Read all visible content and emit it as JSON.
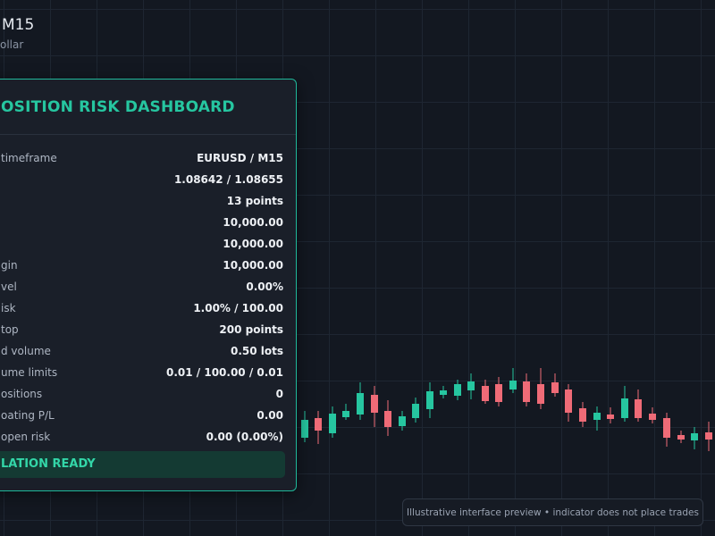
{
  "header": {
    "symbol": "M15",
    "description": "ollar"
  },
  "panel": {
    "title": "OSITION RISK DASHBOARD",
    "rows": [
      {
        "label": "timeframe",
        "value": "EURUSD / M15"
      },
      {
        "value": "1.08642 / 1.08655"
      },
      {
        "value": "13 points"
      },
      {
        "value": "10,000.00"
      },
      {
        "value": "10,000.00"
      },
      {
        "label": "gin",
        "value": "10,000.00"
      },
      {
        "label": "vel",
        "value": "0.00%"
      },
      {
        "label": "isk",
        "value": "1.00% / 100.00"
      },
      {
        "label": "top",
        "value": "200 points"
      },
      {
        "label": "d volume",
        "value": "0.50 lots"
      },
      {
        "label": "ume limits",
        "value": "0.01 / 100.00 / 0.01"
      },
      {
        "label": "ositions",
        "value": "0"
      },
      {
        "label": "oating P/L",
        "value": "0.00"
      },
      {
        "label": "open risk",
        "value": "0.00 (0.00%)"
      }
    ],
    "status": "LATION READY"
  },
  "footer": {
    "note": "Illustrative interface preview • indicator does not place trades"
  }
}
